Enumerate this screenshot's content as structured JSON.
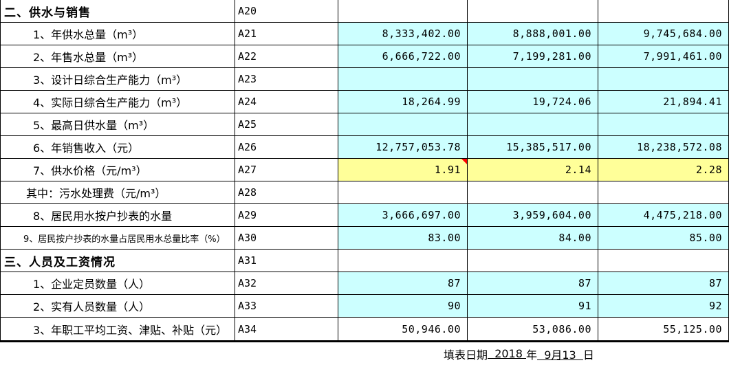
{
  "colors": {
    "cell_cyan": "#ccffff",
    "cell_yellow": "#ffff99",
    "comment_red": "#ff0000",
    "grid_black": "#000000"
  },
  "table": {
    "rows": [
      {
        "label": "二、供水与销售",
        "code": "A20",
        "values": [
          "",
          "",
          ""
        ]
      },
      {
        "label": "1、年供水总量（m³）",
        "code": "A21",
        "values": [
          "8,333,402.00",
          "8,888,001.00",
          "9,745,684.00"
        ]
      },
      {
        "label": "2、年售水总量（m³）",
        "code": "A22",
        "values": [
          "6,666,722.00",
          "7,199,281.00",
          "7,991,461.00"
        ]
      },
      {
        "label": "3、设计日综合生产能力（m³）",
        "code": "A23",
        "values": [
          "",
          "",
          ""
        ]
      },
      {
        "label": "4、实际日综合生产能力（m³）",
        "code": "A24",
        "values": [
          "18,264.99",
          "19,724.06",
          "21,894.41"
        ]
      },
      {
        "label": "5、最高日供水量（m³）",
        "code": "A25",
        "values": [
          "",
          "",
          ""
        ]
      },
      {
        "label": "6、年销售收入（元）",
        "code": "A26",
        "values": [
          "12,757,053.78",
          "15,385,517.00",
          "18,238,572.08"
        ]
      },
      {
        "label": "7、供水价格（元/m³）",
        "code": "A27",
        "values": [
          "1.91",
          "2.14",
          "2.28"
        ]
      },
      {
        "label": "其中：污水处理费（元/m³）",
        "code": "A28",
        "values": [
          "",
          "",
          ""
        ]
      },
      {
        "label": "8、居民用水按户抄表的水量",
        "code": "A29",
        "values": [
          "3,666,697.00",
          "3,959,604.00",
          "4,475,218.00"
        ]
      },
      {
        "label": "9、居民按户抄表的水量占居民用水总量比率（%）",
        "code": "A30",
        "values": [
          "83.00",
          "84.00",
          "85.00"
        ]
      },
      {
        "label": "三、人员及工资情况",
        "code": "A31",
        "values": [
          "",
          "",
          ""
        ]
      },
      {
        "label": "1、企业定员数量（人）",
        "code": "A32",
        "values": [
          "87",
          "87",
          "87"
        ]
      },
      {
        "label": "2、实有人员数量（人）",
        "code": "A33",
        "values": [
          "90",
          "91",
          "92"
        ]
      },
      {
        "label": "3、年职工平均工资、津贴、补贴（元）",
        "code": "A34",
        "values": [
          "50,946.00",
          "53,086.00",
          "55,125.00"
        ]
      }
    ]
  },
  "footer": {
    "label": "填表日期",
    "year_blank": "  2018 ",
    "year_unit": "年",
    "date_blank": "  9月13  ",
    "day_unit": "日"
  }
}
